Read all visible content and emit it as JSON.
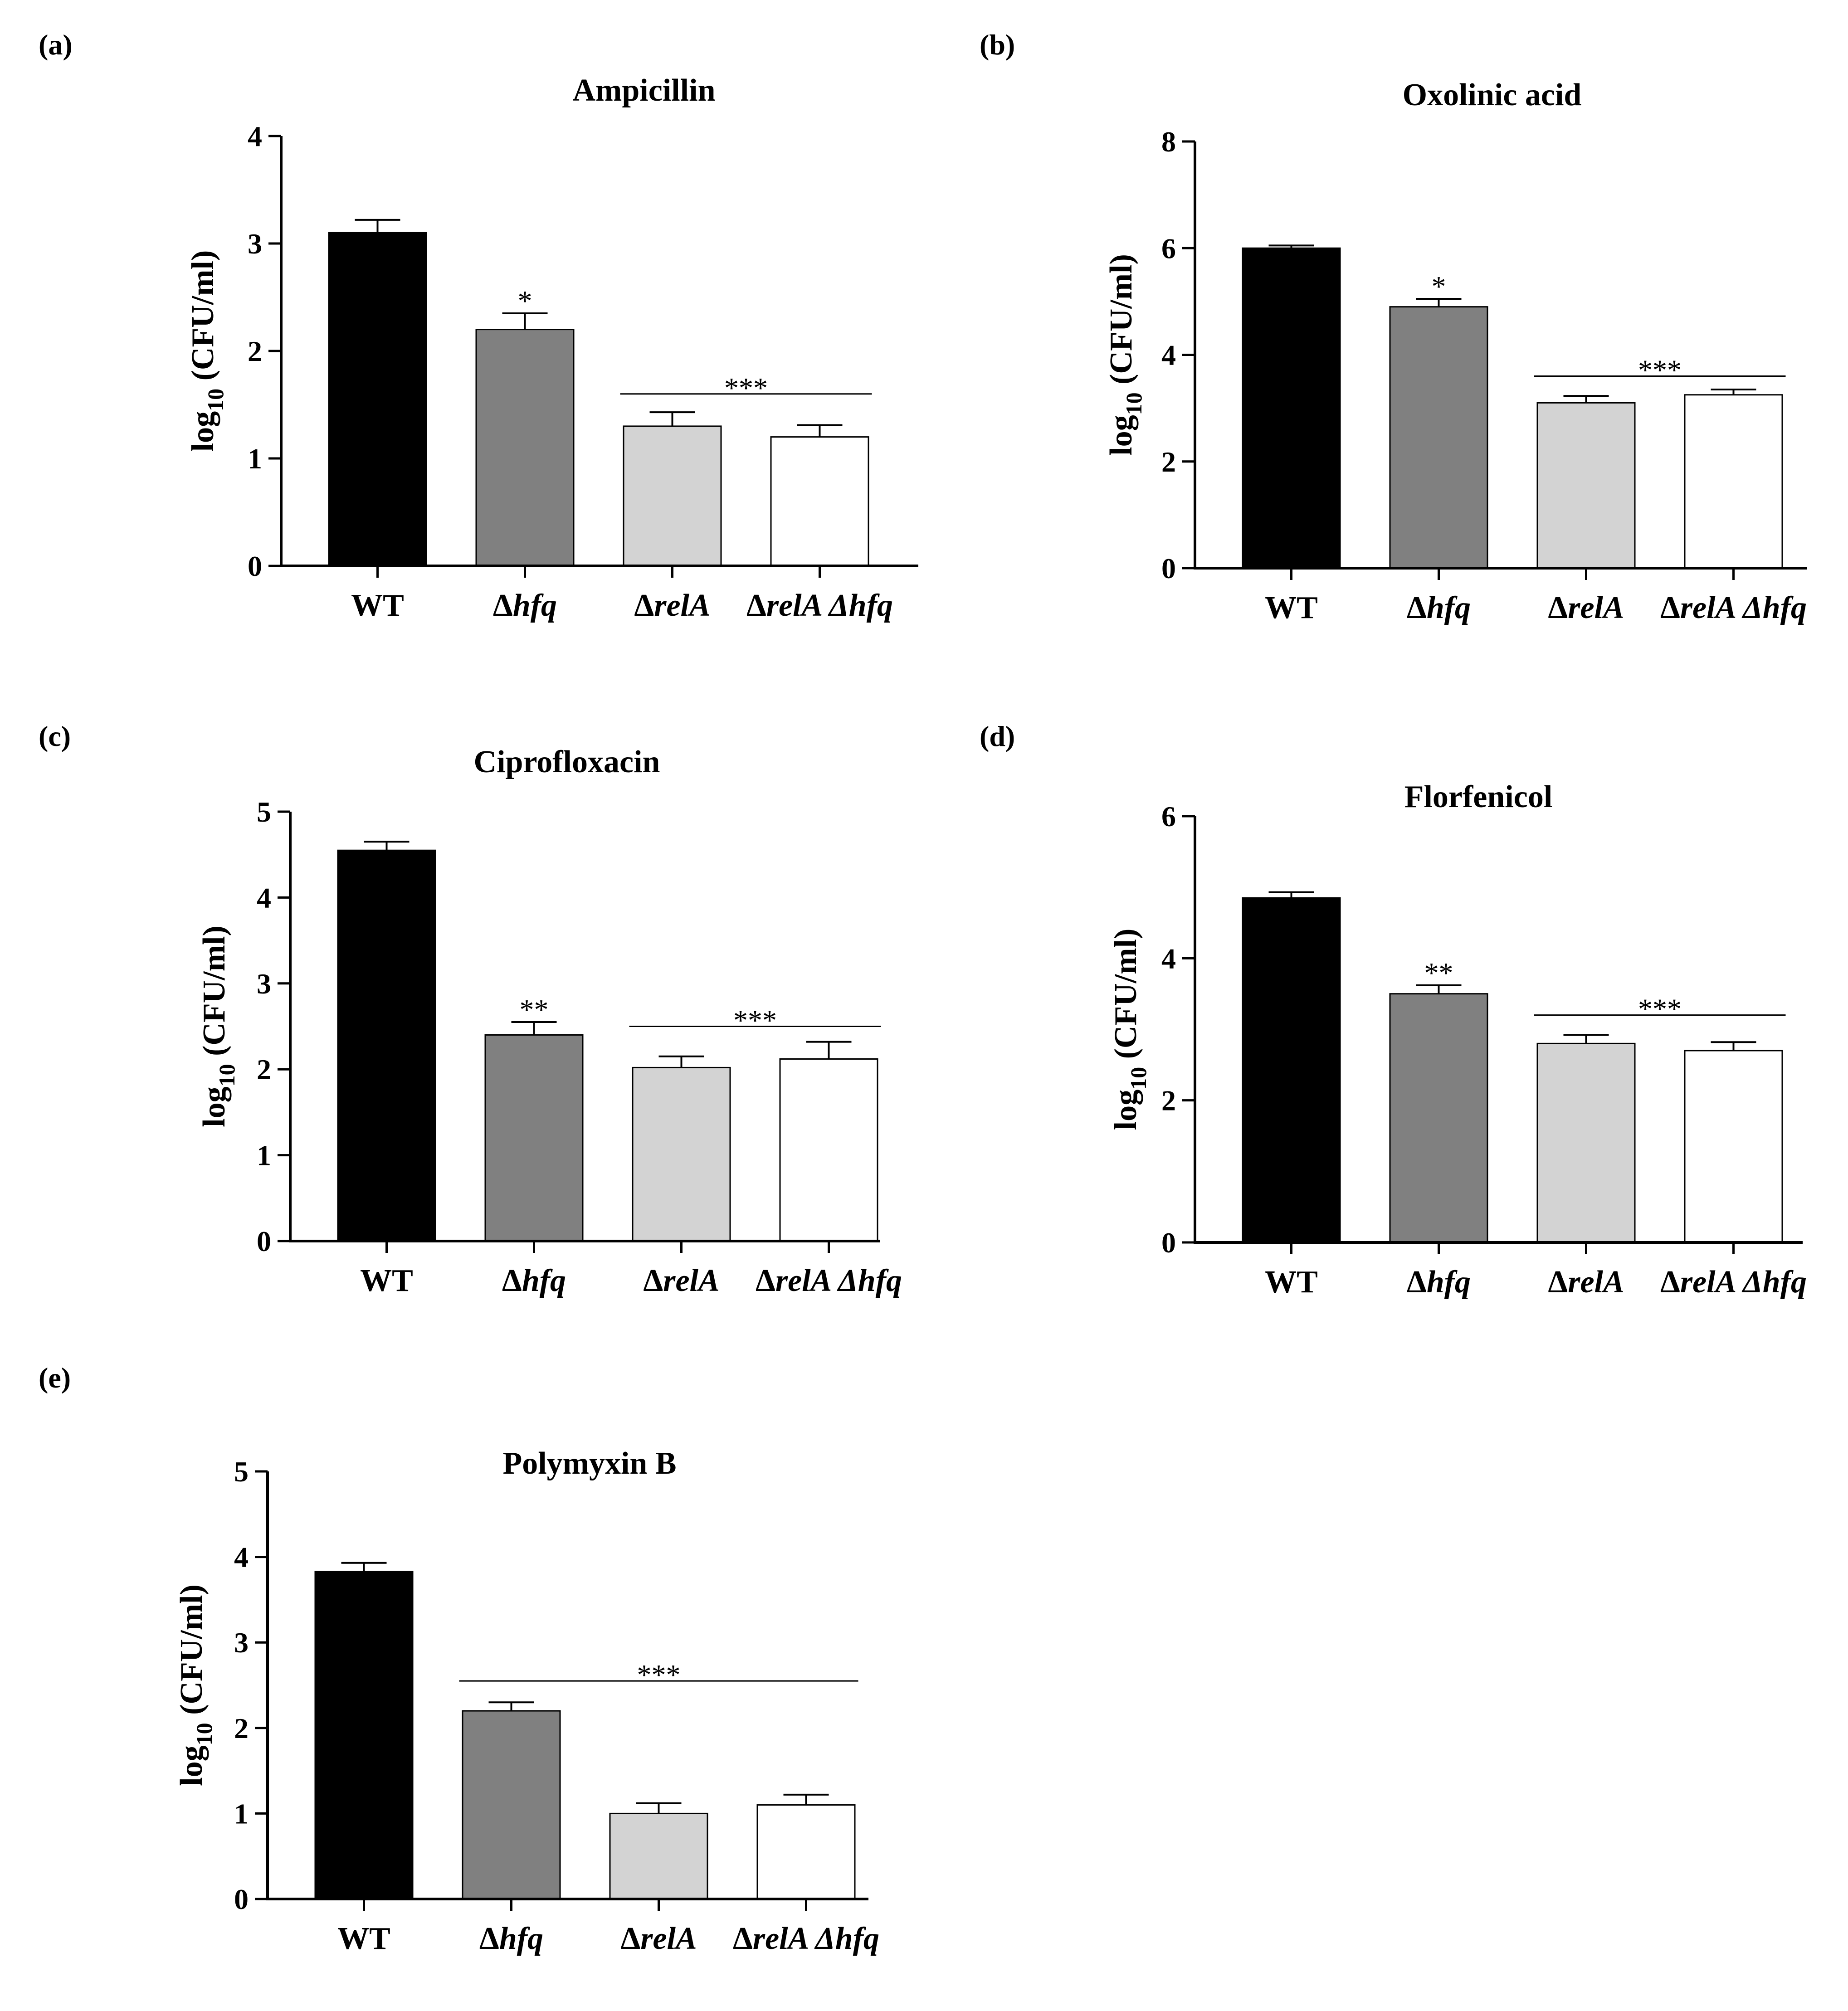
{
  "figure": {
    "category_labels": [
      {
        "prefix": "",
        "name": "WT",
        "italic": false
      },
      {
        "prefix": "Δ",
        "name": "hfq",
        "italic": true
      },
      {
        "prefix": "Δ",
        "name": "relA",
        "italic": true
      },
      {
        "prefix": "Δ",
        "name": "relA Δhfq",
        "italic": true
      }
    ],
    "ylabel": {
      "base": "log",
      "subscript": "10",
      "unit": " (CFU/ml)"
    },
    "bar_colors": [
      "#000000",
      "#808080",
      "#d3d3d3",
      "#ffffff"
    ]
  },
  "chart_data": [
    {
      "type": "bar",
      "panel_label": "(a)",
      "title": "Ampicillin",
      "categories": [
        "WT",
        "Δhfq",
        "ΔrelA",
        "ΔrelA Δhfq"
      ],
      "values": [
        3.1,
        2.2,
        1.3,
        1.2
      ],
      "errors": [
        0.12,
        0.15,
        0.13,
        0.11
      ],
      "ylabel": "log10 (CFU/ml)",
      "ylim": [
        0,
        4
      ],
      "yticks": [
        "0",
        "1",
        "2",
        "3",
        "4"
      ],
      "annotations": [
        {
          "text": "*",
          "type": "bar",
          "index": 1
        },
        {
          "text": "***",
          "type": "bracket",
          "from": 2,
          "to": 3,
          "y": 1.6
        }
      ]
    },
    {
      "type": "bar",
      "panel_label": "(b)",
      "title": "Oxolinic acid",
      "categories": [
        "WT",
        "Δhfq",
        "ΔrelA",
        "ΔrelA Δhfq"
      ],
      "values": [
        6.0,
        4.9,
        3.1,
        3.25
      ],
      "errors": [
        0.05,
        0.15,
        0.13,
        0.1
      ],
      "ylabel": "log10 (CFU/ml)",
      "ylim": [
        0,
        8
      ],
      "yticks": [
        "0",
        "2",
        "4",
        "6",
        "8"
      ],
      "annotations": [
        {
          "text": "*",
          "type": "bar",
          "index": 1
        },
        {
          "text": "***",
          "type": "bracket",
          "from": 2,
          "to": 3,
          "y": 3.6
        }
      ]
    },
    {
      "type": "bar",
      "panel_label": "(c)",
      "title": "Ciprofloxacin",
      "categories": [
        "WT",
        "Δhfq",
        "ΔrelA",
        "ΔrelA Δhfq"
      ],
      "values": [
        4.55,
        2.4,
        2.02,
        2.12
      ],
      "errors": [
        0.1,
        0.15,
        0.13,
        0.2
      ],
      "ylabel": "log10 (CFU/ml)",
      "ylim": [
        0,
        5
      ],
      "yticks": [
        "0",
        "1",
        "2",
        "3",
        "4",
        "5"
      ],
      "annotations": [
        {
          "text": "**",
          "type": "bar",
          "index": 1
        },
        {
          "text": "***",
          "type": "bracket",
          "from": 2,
          "to": 3,
          "y": 2.5
        }
      ]
    },
    {
      "type": "bar",
      "panel_label": "(d)",
      "title": "Florfenicol",
      "categories": [
        "WT",
        "Δhfq",
        "ΔrelA",
        "ΔrelA Δhfq"
      ],
      "values": [
        4.85,
        3.5,
        2.8,
        2.7
      ],
      "errors": [
        0.08,
        0.12,
        0.12,
        0.12
      ],
      "ylabel": "log10 (CFU/ml)",
      "ylim": [
        0,
        6
      ],
      "yticks": [
        "0",
        "2",
        "4",
        "6"
      ],
      "annotations": [
        {
          "text": "**",
          "type": "bar",
          "index": 1
        },
        {
          "text": "***",
          "type": "bracket",
          "from": 2,
          "to": 3,
          "y": 3.2
        }
      ]
    },
    {
      "type": "bar",
      "panel_label": "(e)",
      "title": "Polymyxin  B",
      "categories": [
        "WT",
        "Δhfq",
        "ΔrelA",
        "ΔrelA Δhfq"
      ],
      "values": [
        3.83,
        2.2,
        1.0,
        1.1
      ],
      "errors": [
        0.1,
        0.1,
        0.12,
        0.12
      ],
      "ylabel": "log10 (CFU/ml)",
      "ylim": [
        0,
        5
      ],
      "yticks": [
        "0",
        "1",
        "2",
        "3",
        "4",
        "5"
      ],
      "annotations": [
        {
          "text": "***",
          "type": "bracket",
          "from": 1,
          "to": 3,
          "y": 2.55
        }
      ]
    }
  ]
}
